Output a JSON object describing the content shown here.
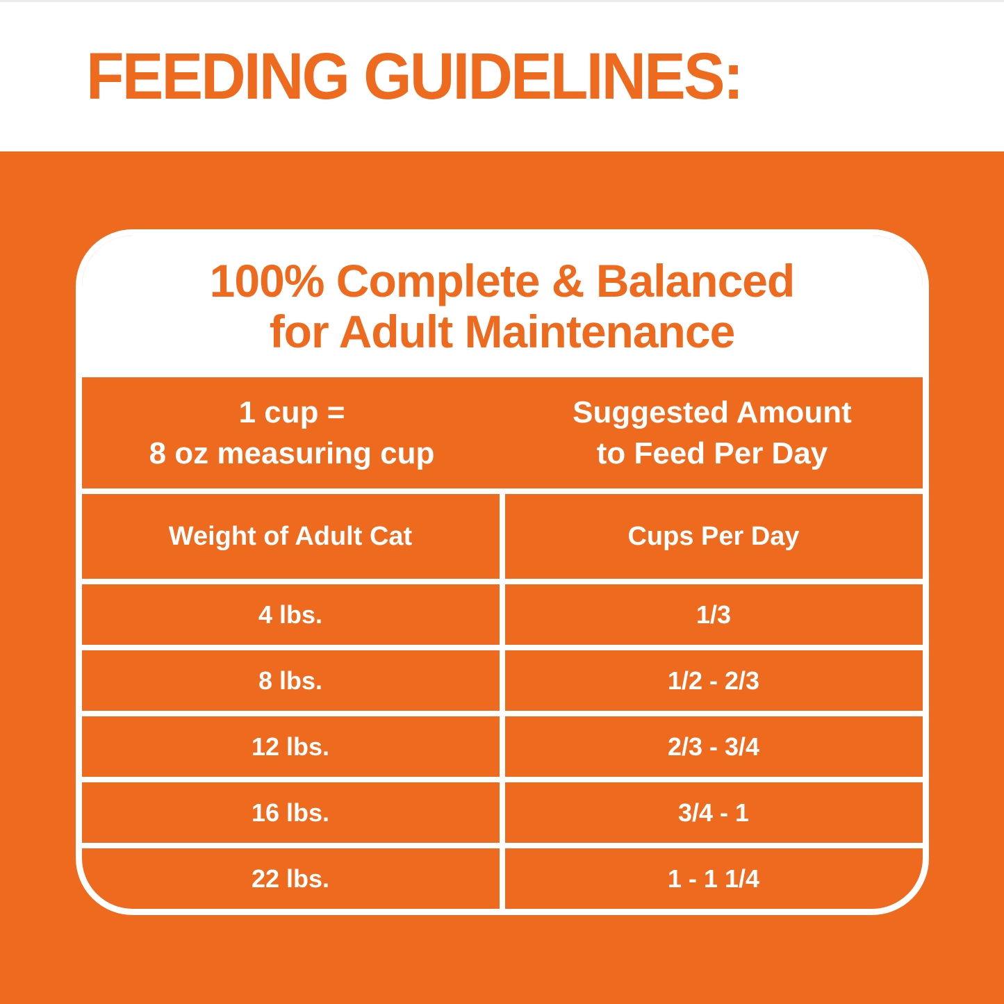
{
  "colors": {
    "orange": "#ee6a1e",
    "white": "#ffffff"
  },
  "header": {
    "title": "FEEDING GUIDELINES:"
  },
  "card": {
    "title_line1": "100% Complete & Balanced",
    "title_line2": "for Adult Maintenance",
    "cup_definition": {
      "line1": "1 cup =",
      "line2": "8 oz measuring cup"
    },
    "suggested_amount": {
      "line1": "Suggested Amount",
      "line2": "to Feed Per Day"
    },
    "columns": {
      "left": "Weight of Adult Cat",
      "right": "Cups Per Day"
    },
    "rows": [
      {
        "weight": "4 lbs.",
        "cups": "1/3"
      },
      {
        "weight": "8 lbs.",
        "cups": "1/2 - 2/3"
      },
      {
        "weight": "12 lbs.",
        "cups": "2/3 - 3/4"
      },
      {
        "weight": "16 lbs.",
        "cups": "3/4 - 1"
      },
      {
        "weight": "22 lbs.",
        "cups": "1 - 1 1/4"
      }
    ]
  }
}
